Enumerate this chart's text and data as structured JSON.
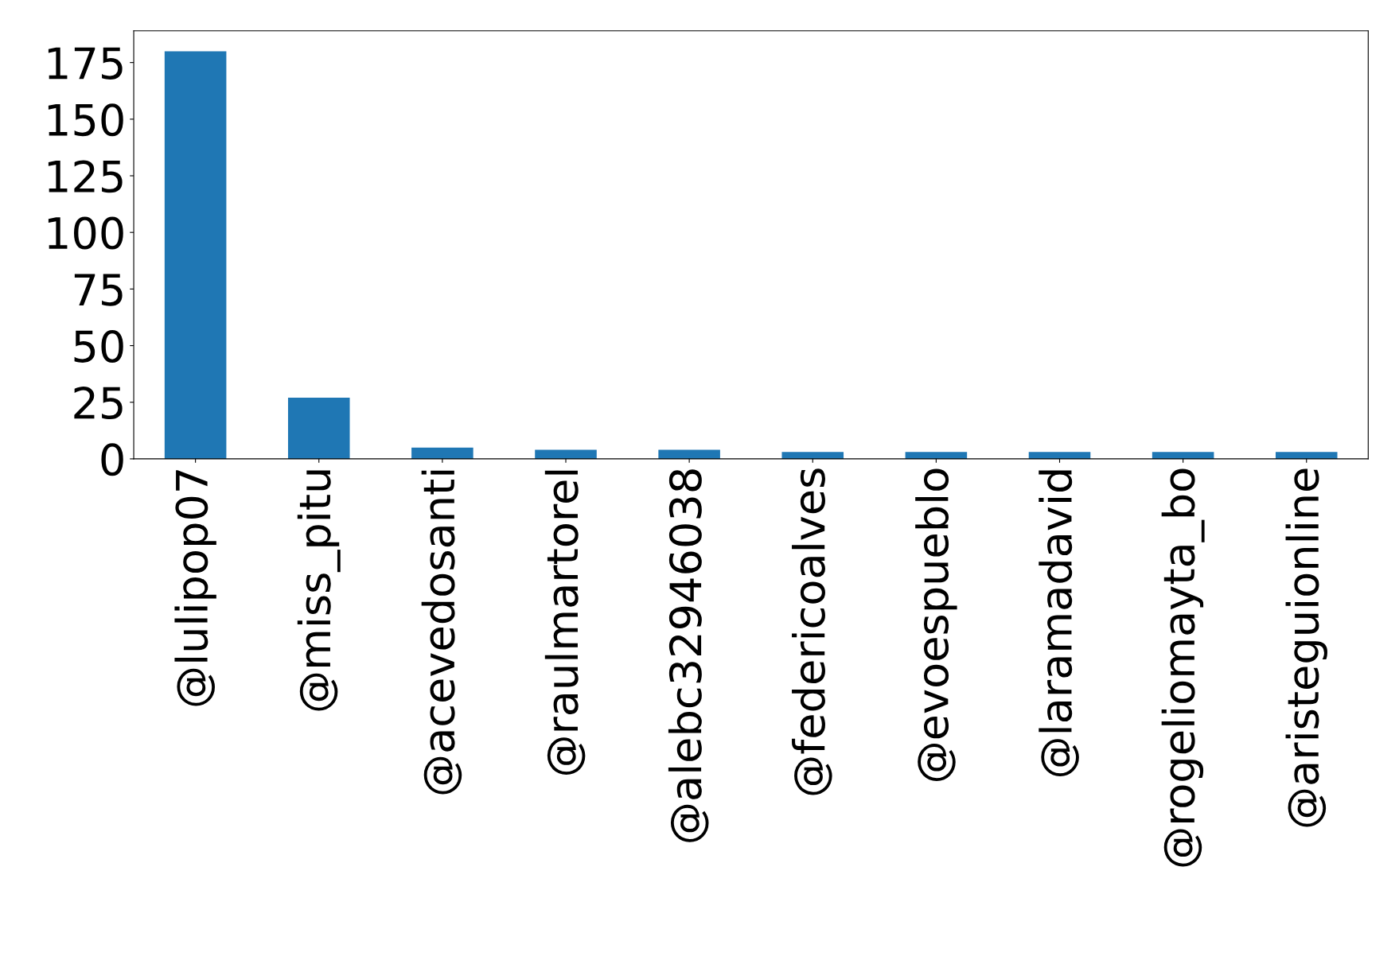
{
  "chart_data": {
    "type": "bar",
    "categories": [
      "@lulipop07",
      "@miss_pitu",
      "@acevedosanti",
      "@raulmartorel",
      "@alebc32946038",
      "@federicoalves",
      "@evoespueblo",
      "@laramadavid",
      "@rogeliomayta_bo",
      "@aristeguionline"
    ],
    "values": [
      180,
      27,
      5,
      4,
      4,
      3,
      3,
      3,
      3,
      3
    ],
    "color": "#1f77b4",
    "ylim": [
      0,
      189
    ],
    "yticks": [
      0,
      25,
      50,
      75,
      100,
      125,
      150,
      175
    ],
    "grid": false,
    "legend": false
  }
}
